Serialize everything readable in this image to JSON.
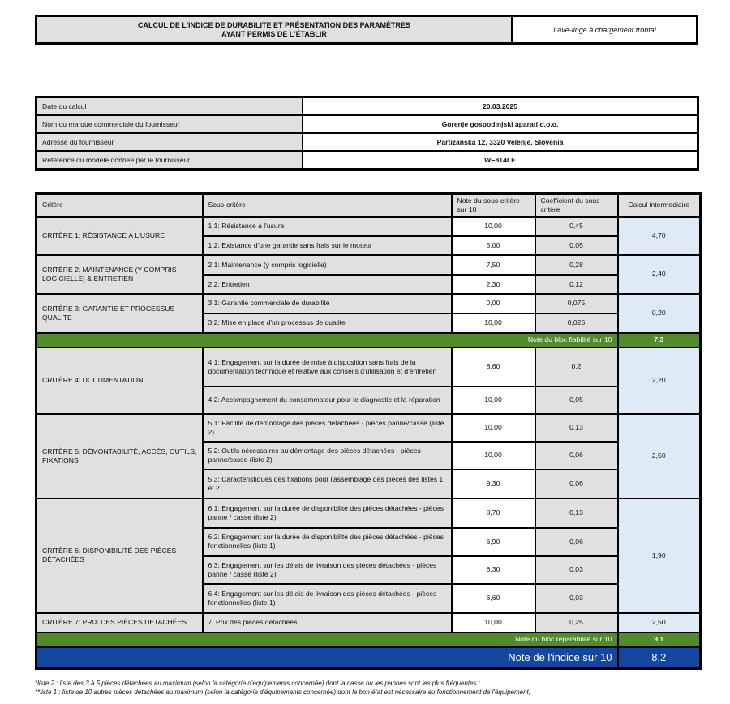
{
  "header": {
    "title_line1": "CALCUL DE L'INDICE DE DURABILITE ET  PRÉSENTATION DES PARAMÈTRES",
    "title_line2": "AYANT PERMIS DE L'ÉTABLIR",
    "product": "Lave-linge à chargement frontal"
  },
  "info": [
    {
      "label": "Date du calcul",
      "value": "20.03.2025"
    },
    {
      "label": "Nom ou marque commerciale du fournisseur",
      "value": "Gorenje gospodinjski aparati d.o.o."
    },
    {
      "label": "Adresse du fournisseur",
      "value": "Partizanska 12, 3320 Velenje, Slovenia"
    },
    {
      "label": "Référence du modèle donnée par le fournisseur",
      "value": "WF814LE"
    }
  ],
  "columns": [
    "Critère",
    "Sous-critère",
    "Note du sous-critère sur 10",
    "Coefficient du sous critère",
    "Calcul intermediaire"
  ],
  "criteria": [
    {
      "name": "CRITÈRE 1: RÉSISTANCE À L'USURE",
      "calc": "4,70",
      "subs": [
        {
          "label": "1.1: Résistance à l'usure",
          "note": "10,00",
          "coef": "0,45",
          "h": 24
        },
        {
          "label": "1.2: Existance d'une garantie sans frais sur le moteur",
          "note": "5,00",
          "coef": "0,05",
          "h": 23
        }
      ]
    },
    {
      "name": "CRITÈRE 2: MAINTENANCE (Y COMPRIS LOGICIELLE) & ENTRETIEN",
      "calc": "2,40",
      "subs": [
        {
          "label": "2.1: Maintenance (y compris logicielle)",
          "note": "7,50",
          "coef": "0,28",
          "h": 25
        },
        {
          "label": "2.2: Entretien",
          "note": "2,30",
          "coef": "0,12",
          "h": 23
        }
      ]
    },
    {
      "name": "CRITÈRE 3: GARANTIE ET PROCESSUS QUALITE",
      "calc": "0,20",
      "subs": [
        {
          "label": "3.1: Garantie commerciale de durabilité",
          "note": "0,00",
          "coef": "0,075",
          "h": 24
        },
        {
          "label": "3.2: Mise en place d'un processus de qualite",
          "note": "10,00",
          "coef": "0,025",
          "h": 24
        }
      ]
    },
    {
      "bloc": "Note du bloc fiabilité sur 10",
      "value": "7,3"
    },
    {
      "name": "CRITÈRE 4: DOCUMENTATION",
      "calc": "2,20",
      "subs": [
        {
          "label": "4.1: Engagement sur la durée de mise à disposition sans frais de la documentation technique et relative aux conseils d'utilisation et d'entretien",
          "note": "8,60",
          "coef": "0,2",
          "h": 48
        },
        {
          "label": "4.2: Accompagnement du consommateur pour le diagnostic et la réparation",
          "note": "10,00",
          "coef": "0,05",
          "h": 34
        }
      ]
    },
    {
      "name": "CRITÈRE 5: DÉMONTABILITÉ, ACCÈS, OUTILS, FIXATIONS",
      "calc": "2,50",
      "subs": [
        {
          "label": "5.1: Facilité de démontage des pièces détachées - pièces panne/casse (liste 2)",
          "note": "10,00",
          "coef": "0,13",
          "h": 34
        },
        {
          "label": "5.2: Outils nécessaires au démontage des pièces détachées - pièces panne/casse (liste 2)",
          "note": "10,00",
          "coef": "0,06",
          "h": 34
        },
        {
          "label": "5.3: Caractéristiques des fixations pour l'assemblage des pièces des listes 1 et 2",
          "note": "9,30",
          "coef": "0,06",
          "h": 36
        }
      ]
    },
    {
      "name": "CRITÈRE 6: DISPONIBILITÉ DES PIÈCES DÉTACHÉES",
      "calc": "1,90",
      "subs": [
        {
          "label": "6.1: Engagement sur la durée de disponibilité des pièces détachées - pièces panne / casse (liste 2)",
          "note": "8,70",
          "coef": "0,13",
          "h": 36
        },
        {
          "label": "6.2: Engagement sur la durée de disponibilité des pièces détachées - pièces fonctionnelles (liste 1)",
          "note": "6,90",
          "coef": "0,06",
          "h": 35
        },
        {
          "label": "6.3: Engagement sur les délais de livraison des pièces détachées - pièces panne / casse (liste 2)",
          "note": "8,30",
          "coef": "0,03",
          "h": 34
        },
        {
          "label": "6.4: Engagement sur les délais de livraison des pièces détachées - pièces fonctionnelles (liste 1)",
          "note": "6,60",
          "coef": "0,03",
          "h": 36
        }
      ]
    },
    {
      "name": "CRITÈRE 7: PRIX DES PIÈCES DÉTACHÉES",
      "calc": "2,50",
      "subs": [
        {
          "label": "7: Prix des pièces détachées",
          "note": "10,00",
          "coef": "0,25",
          "h": 24
        }
      ]
    },
    {
      "bloc": "Note du bloc réparabilité sur 10",
      "value": "9,1"
    }
  ],
  "total": {
    "label": "Note de l'indice sur 10",
    "value": "8,2"
  },
  "footnotes": [
    "*liste 2 : liste des 3 à 5 pièces détachées au maximum (selon la catégorie d'équipements concernée) dont la casse ou les pannes sont les plus fréquentes ;",
    "**liste 1 : liste de 10 autres pièces détachées au maximum (selon la catégorie d'équipements concernée) dont le bon état est nécessaire au fonctionnement de l'équipement;"
  ],
  "colors": {
    "green": "#548a2e",
    "blue": "#1447a0",
    "calc_bg": "#deeaf6",
    "label_bg": "#e0e0e0"
  }
}
